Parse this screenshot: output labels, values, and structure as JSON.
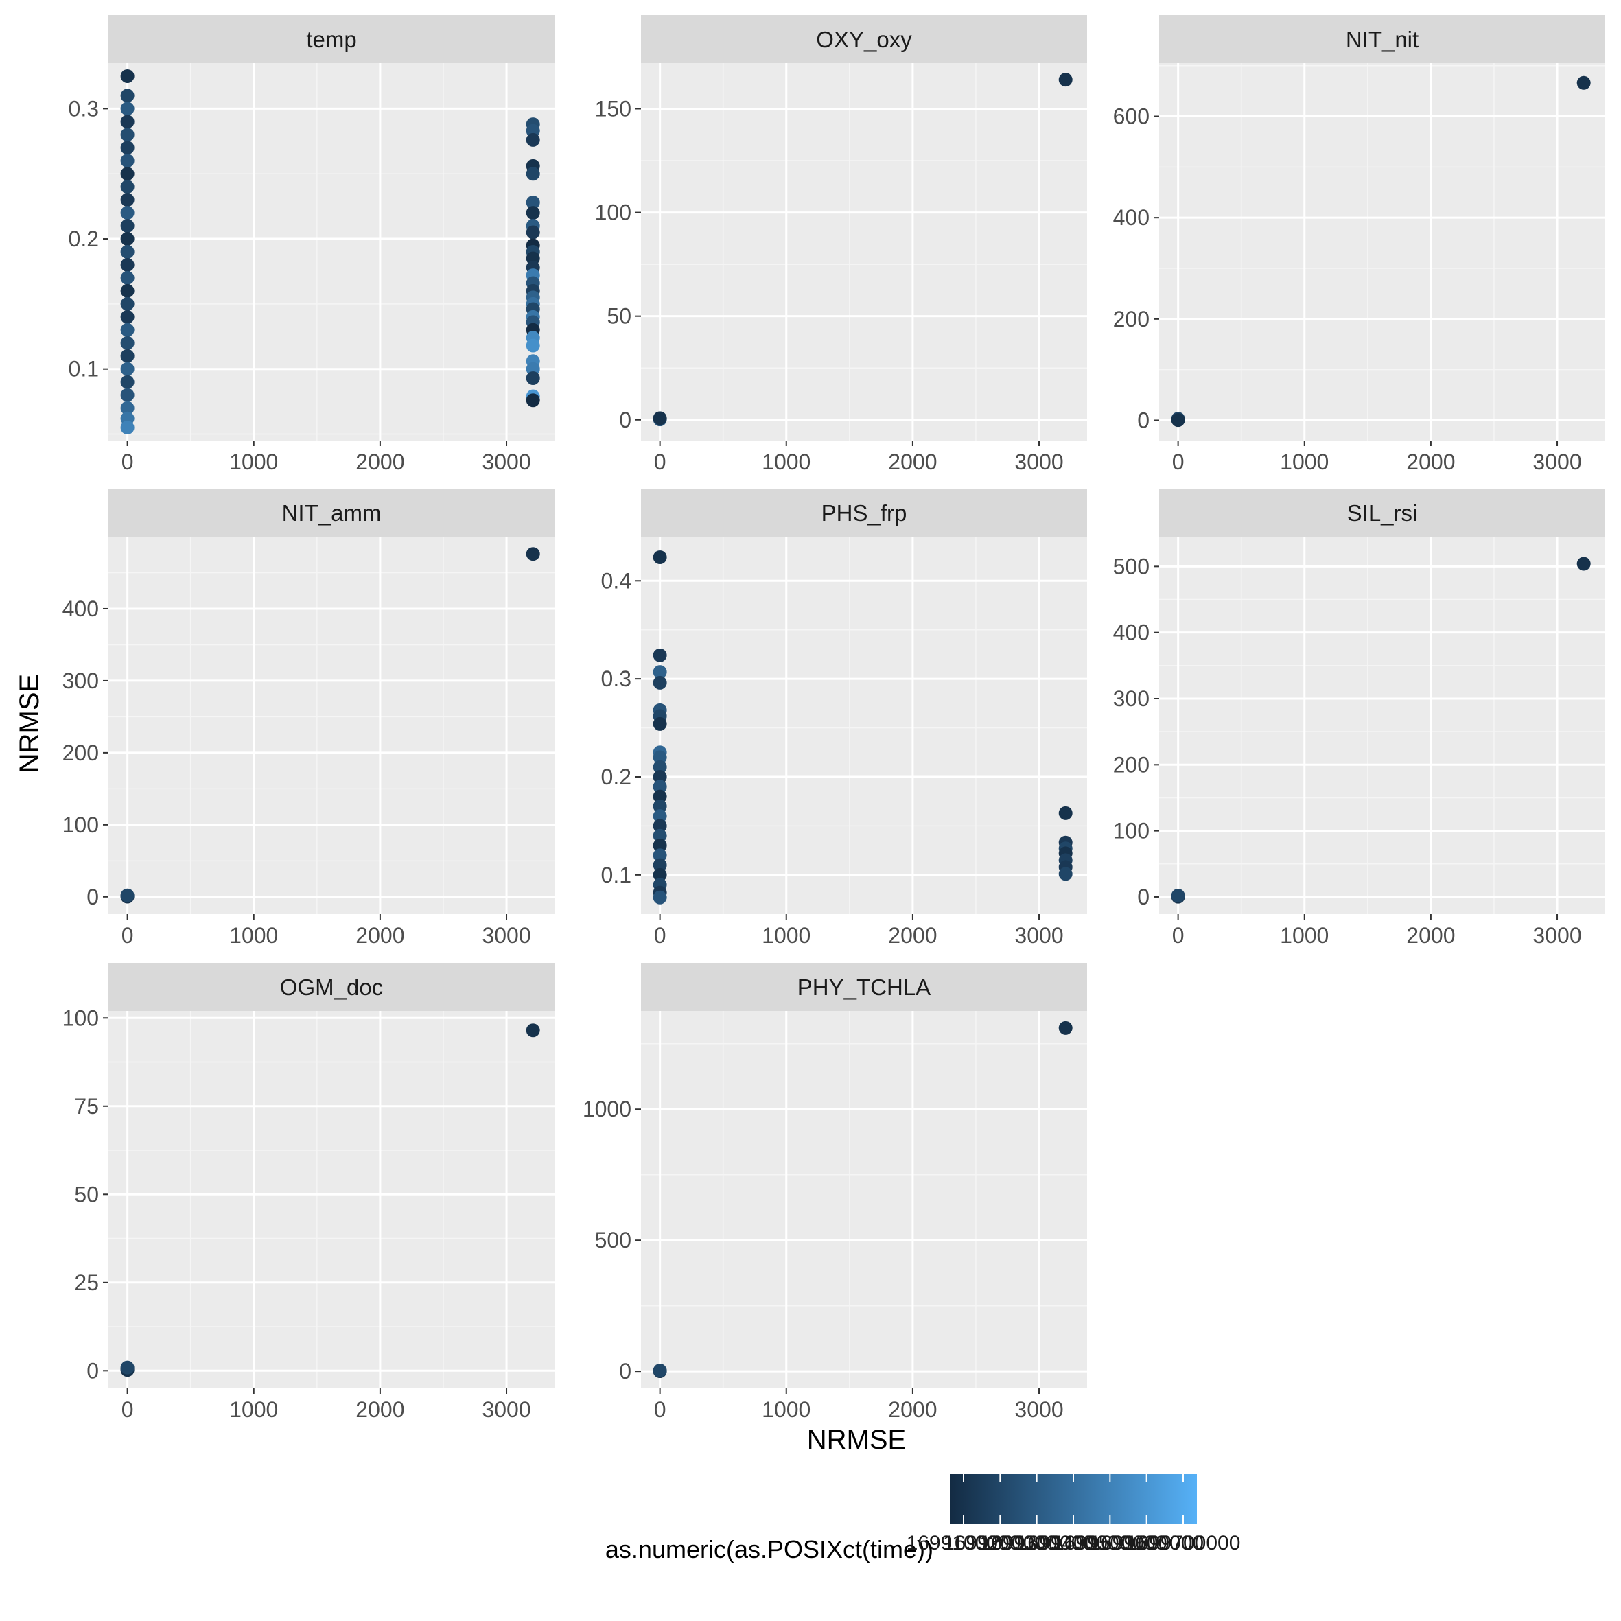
{
  "chart_data": {
    "type": "scatter",
    "xlabel": "NRMSE",
    "ylabel": "NRMSE",
    "grid": true,
    "legend": {
      "position": "bottom",
      "title": "as.numeric(as.POSIXct(time))",
      "type": "colorbar",
      "colors": [
        "#132B43",
        "#56B1F7"
      ],
      "tick_labels": [
        "1699100000",
        "1699200000",
        "1699300000",
        "1699400000",
        "1699500000",
        "1699600000",
        "1699700000"
      ]
    },
    "panels": [
      {
        "name": "temp",
        "xlim": [
          -150,
          3380
        ],
        "ylim": [
          0.045,
          0.335
        ],
        "xticks": [
          0,
          1000,
          2000,
          3000
        ],
        "xticklabels": [
          "0",
          "1000",
          "2000",
          "3000"
        ],
        "yticks": [
          0.1,
          0.2,
          0.3
        ],
        "yticklabels": [
          "0.1",
          "0.2",
          "0.3"
        ],
        "points": [
          {
            "x": 0,
            "y": 0.325,
            "c": 0.05
          },
          {
            "x": 0,
            "y": 0.31,
            "c": 0.2
          },
          {
            "x": 0,
            "y": 0.3,
            "c": 0.35
          },
          {
            "x": 0,
            "y": 0.29,
            "c": 0.1
          },
          {
            "x": 0,
            "y": 0.28,
            "c": 0.25
          },
          {
            "x": 0,
            "y": 0.27,
            "c": 0.15
          },
          {
            "x": 0,
            "y": 0.26,
            "c": 0.3
          },
          {
            "x": 0,
            "y": 0.25,
            "c": 0.05
          },
          {
            "x": 0,
            "y": 0.24,
            "c": 0.2
          },
          {
            "x": 0,
            "y": 0.23,
            "c": 0.1
          },
          {
            "x": 0,
            "y": 0.22,
            "c": 0.35
          },
          {
            "x": 0,
            "y": 0.21,
            "c": 0.15
          },
          {
            "x": 0,
            "y": 0.2,
            "c": 0.05
          },
          {
            "x": 0,
            "y": 0.19,
            "c": 0.25
          },
          {
            "x": 0,
            "y": 0.18,
            "c": 0.1
          },
          {
            "x": 0,
            "y": 0.17,
            "c": 0.3
          },
          {
            "x": 0,
            "y": 0.16,
            "c": 0.05
          },
          {
            "x": 0,
            "y": 0.15,
            "c": 0.2
          },
          {
            "x": 0,
            "y": 0.14,
            "c": 0.1
          },
          {
            "x": 0,
            "y": 0.13,
            "c": 0.35
          },
          {
            "x": 0,
            "y": 0.12,
            "c": 0.25
          },
          {
            "x": 0,
            "y": 0.11,
            "c": 0.15
          },
          {
            "x": 0,
            "y": 0.1,
            "c": 0.4
          },
          {
            "x": 0,
            "y": 0.09,
            "c": 0.2
          },
          {
            "x": 0,
            "y": 0.08,
            "c": 0.3
          },
          {
            "x": 0,
            "y": 0.07,
            "c": 0.45
          },
          {
            "x": 0,
            "y": 0.062,
            "c": 0.55
          },
          {
            "x": 0,
            "y": 0.055,
            "c": 0.65
          },
          {
            "x": 3210,
            "y": 0.288,
            "c": 0.25
          },
          {
            "x": 3210,
            "y": 0.283,
            "c": 0.3
          },
          {
            "x": 3210,
            "y": 0.276,
            "c": 0.1
          },
          {
            "x": 3210,
            "y": 0.256,
            "c": 0.05
          },
          {
            "x": 3210,
            "y": 0.25,
            "c": 0.2
          },
          {
            "x": 3210,
            "y": 0.228,
            "c": 0.3
          },
          {
            "x": 3210,
            "y": 0.22,
            "c": 0.05
          },
          {
            "x": 3210,
            "y": 0.21,
            "c": 0.35
          },
          {
            "x": 3210,
            "y": 0.205,
            "c": 0.1
          },
          {
            "x": 3210,
            "y": 0.195,
            "c": 0.0
          },
          {
            "x": 3210,
            "y": 0.19,
            "c": 0.2
          },
          {
            "x": 3210,
            "y": 0.185,
            "c": 0.05
          },
          {
            "x": 3210,
            "y": 0.178,
            "c": 0.1
          },
          {
            "x": 3210,
            "y": 0.172,
            "c": 0.6
          },
          {
            "x": 3210,
            "y": 0.166,
            "c": 0.3
          },
          {
            "x": 3210,
            "y": 0.16,
            "c": 0.15
          },
          {
            "x": 3210,
            "y": 0.155,
            "c": 0.4
          },
          {
            "x": 3210,
            "y": 0.15,
            "c": 0.5
          },
          {
            "x": 3210,
            "y": 0.146,
            "c": 0.2
          },
          {
            "x": 3210,
            "y": 0.14,
            "c": 0.55
          },
          {
            "x": 3210,
            "y": 0.136,
            "c": 0.3
          },
          {
            "x": 3210,
            "y": 0.13,
            "c": 0.0
          },
          {
            "x": 3210,
            "y": 0.124,
            "c": 0.7
          },
          {
            "x": 3210,
            "y": 0.118,
            "c": 0.75
          },
          {
            "x": 3210,
            "y": 0.106,
            "c": 0.65
          },
          {
            "x": 3210,
            "y": 0.1,
            "c": 0.6
          },
          {
            "x": 3210,
            "y": 0.093,
            "c": 0.15
          },
          {
            "x": 3210,
            "y": 0.079,
            "c": 0.8
          },
          {
            "x": 3210,
            "y": 0.076,
            "c": 0.0
          }
        ]
      },
      {
        "name": "OXY_oxy",
        "xlim": [
          -150,
          3380
        ],
        "ylim": [
          -10,
          172
        ],
        "xticks": [
          0,
          1000,
          2000,
          3000
        ],
        "xticklabels": [
          "0",
          "1000",
          "2000",
          "3000"
        ],
        "yticks": [
          0,
          50,
          100,
          150
        ],
        "yticklabels": [
          "0",
          "50",
          "100",
          "150"
        ],
        "points": [
          {
            "x": 0,
            "y": 0.5,
            "c": 0.1
          },
          {
            "x": 0,
            "y": 0.2,
            "c": 0.3
          },
          {
            "x": 0,
            "y": 0.8,
            "c": 0.05
          },
          {
            "x": 3210,
            "y": 164,
            "c": 0.05
          }
        ]
      },
      {
        "name": "NIT_nit",
        "xlim": [
          -150,
          3380
        ],
        "ylim": [
          -40,
          705
        ],
        "xticks": [
          0,
          1000,
          2000,
          3000
        ],
        "xticklabels": [
          "0",
          "1000",
          "2000",
          "3000"
        ],
        "yticks": [
          0,
          200,
          400,
          600
        ],
        "yticklabels": [
          "0",
          "200",
          "400",
          "600"
        ],
        "points": [
          {
            "x": 0,
            "y": 1,
            "c": 0.1
          },
          {
            "x": 0,
            "y": 3,
            "c": 0.2
          },
          {
            "x": 0,
            "y": 0.5,
            "c": 0.05
          },
          {
            "x": 3210,
            "y": 666,
            "c": 0.05
          }
        ]
      },
      {
        "name": "NIT_amm",
        "xlim": [
          -150,
          3380
        ],
        "ylim": [
          -24,
          500
        ],
        "xticks": [
          0,
          1000,
          2000,
          3000
        ],
        "xticklabels": [
          "0",
          "1000",
          "2000",
          "3000"
        ],
        "yticks": [
          0,
          100,
          200,
          300,
          400
        ],
        "yticklabels": [
          "0",
          "100",
          "200",
          "300",
          "400"
        ],
        "points": [
          {
            "x": 0,
            "y": 1,
            "c": 0.1
          },
          {
            "x": 0,
            "y": 0.3,
            "c": 0.05
          },
          {
            "x": 0,
            "y": 2,
            "c": 0.2
          },
          {
            "x": 3210,
            "y": 476,
            "c": 0.05
          }
        ]
      },
      {
        "name": "PHS_frp",
        "xlim": [
          -150,
          3380
        ],
        "ylim": [
          0.06,
          0.445
        ],
        "xticks": [
          0,
          1000,
          2000,
          3000
        ],
        "xticklabels": [
          "0",
          "1000",
          "2000",
          "3000"
        ],
        "yticks": [
          0.1,
          0.2,
          0.3,
          0.4
        ],
        "yticklabels": [
          "0.1",
          "0.2",
          "0.3",
          "0.4"
        ],
        "points": [
          {
            "x": 0,
            "y": 0.424,
            "c": 0.05
          },
          {
            "x": 0,
            "y": 0.324,
            "c": 0.1
          },
          {
            "x": 0,
            "y": 0.307,
            "c": 0.4
          },
          {
            "x": 0,
            "y": 0.296,
            "c": 0.15
          },
          {
            "x": 0,
            "y": 0.268,
            "c": 0.3
          },
          {
            "x": 0,
            "y": 0.262,
            "c": 0.2
          },
          {
            "x": 0,
            "y": 0.254,
            "c": 0.05
          },
          {
            "x": 0,
            "y": 0.225,
            "c": 0.45
          },
          {
            "x": 0,
            "y": 0.22,
            "c": 0.35
          },
          {
            "x": 0,
            "y": 0.21,
            "c": 0.25
          },
          {
            "x": 0,
            "y": 0.2,
            "c": 0.1
          },
          {
            "x": 0,
            "y": 0.19,
            "c": 0.3
          },
          {
            "x": 0,
            "y": 0.18,
            "c": 0.05
          },
          {
            "x": 0,
            "y": 0.17,
            "c": 0.2
          },
          {
            "x": 0,
            "y": 0.16,
            "c": 0.35
          },
          {
            "x": 0,
            "y": 0.15,
            "c": 0.1
          },
          {
            "x": 0,
            "y": 0.14,
            "c": 0.25
          },
          {
            "x": 0,
            "y": 0.13,
            "c": 0.05
          },
          {
            "x": 0,
            "y": 0.12,
            "c": 0.3
          },
          {
            "x": 0,
            "y": 0.11,
            "c": 0.15
          },
          {
            "x": 0,
            "y": 0.1,
            "c": 0.05
          },
          {
            "x": 0,
            "y": 0.09,
            "c": 0.2
          },
          {
            "x": 0,
            "y": 0.082,
            "c": 0.1
          },
          {
            "x": 0,
            "y": 0.077,
            "c": 0.3
          },
          {
            "x": 3210,
            "y": 0.163,
            "c": 0.05
          },
          {
            "x": 3210,
            "y": 0.133,
            "c": 0.1
          },
          {
            "x": 3210,
            "y": 0.127,
            "c": 0.2
          },
          {
            "x": 3210,
            "y": 0.122,
            "c": 0.05
          },
          {
            "x": 3210,
            "y": 0.115,
            "c": 0.15
          },
          {
            "x": 3210,
            "y": 0.108,
            "c": 0.1
          },
          {
            "x": 3210,
            "y": 0.101,
            "c": 0.2
          }
        ]
      },
      {
        "name": "SIL_rsi",
        "xlim": [
          -150,
          3380
        ],
        "ylim": [
          -26,
          545
        ],
        "xticks": [
          0,
          1000,
          2000,
          3000
        ],
        "xticklabels": [
          "0",
          "1000",
          "2000",
          "3000"
        ],
        "yticks": [
          0,
          100,
          200,
          300,
          400,
          500
        ],
        "yticklabels": [
          "0",
          "100",
          "200",
          "300",
          "400",
          "500"
        ],
        "points": [
          {
            "x": 0,
            "y": 1,
            "c": 0.1
          },
          {
            "x": 0,
            "y": 0.3,
            "c": 0.05
          },
          {
            "x": 0,
            "y": 2,
            "c": 0.2
          },
          {
            "x": 3210,
            "y": 504,
            "c": 0.05
          }
        ]
      },
      {
        "name": "OGM_doc",
        "xlim": [
          -150,
          3380
        ],
        "ylim": [
          -5,
          102
        ],
        "xticks": [
          0,
          1000,
          2000,
          3000
        ],
        "xticklabels": [
          "0",
          "1000",
          "2000",
          "3000"
        ],
        "yticks": [
          0,
          25,
          50,
          75,
          100
        ],
        "yticklabels": [
          "0",
          "25",
          "50",
          "75",
          "100"
        ],
        "points": [
          {
            "x": 0,
            "y": 0.5,
            "c": 0.1
          },
          {
            "x": 0,
            "y": 0.2,
            "c": 0.05
          },
          {
            "x": 0,
            "y": 0.9,
            "c": 0.2
          },
          {
            "x": 3210,
            "y": 96.5,
            "c": 0.05
          }
        ]
      },
      {
        "name": "PHY_TCHLA",
        "xlim": [
          -150,
          3380
        ],
        "ylim": [
          -65,
          1375
        ],
        "xticks": [
          0,
          1000,
          2000,
          3000
        ],
        "xticklabels": [
          "0",
          "1000",
          "2000",
          "3000"
        ],
        "yticks": [
          0,
          500,
          1000
        ],
        "yticklabels": [
          "0",
          "500",
          "1000"
        ],
        "points": [
          {
            "x": 0,
            "y": 1,
            "c": 0.1
          },
          {
            "x": 0,
            "y": 0.3,
            "c": 0.05
          },
          {
            "x": 0,
            "y": 3,
            "c": 0.2
          },
          {
            "x": 3210,
            "y": 1310,
            "c": 0.05
          }
        ]
      }
    ]
  }
}
